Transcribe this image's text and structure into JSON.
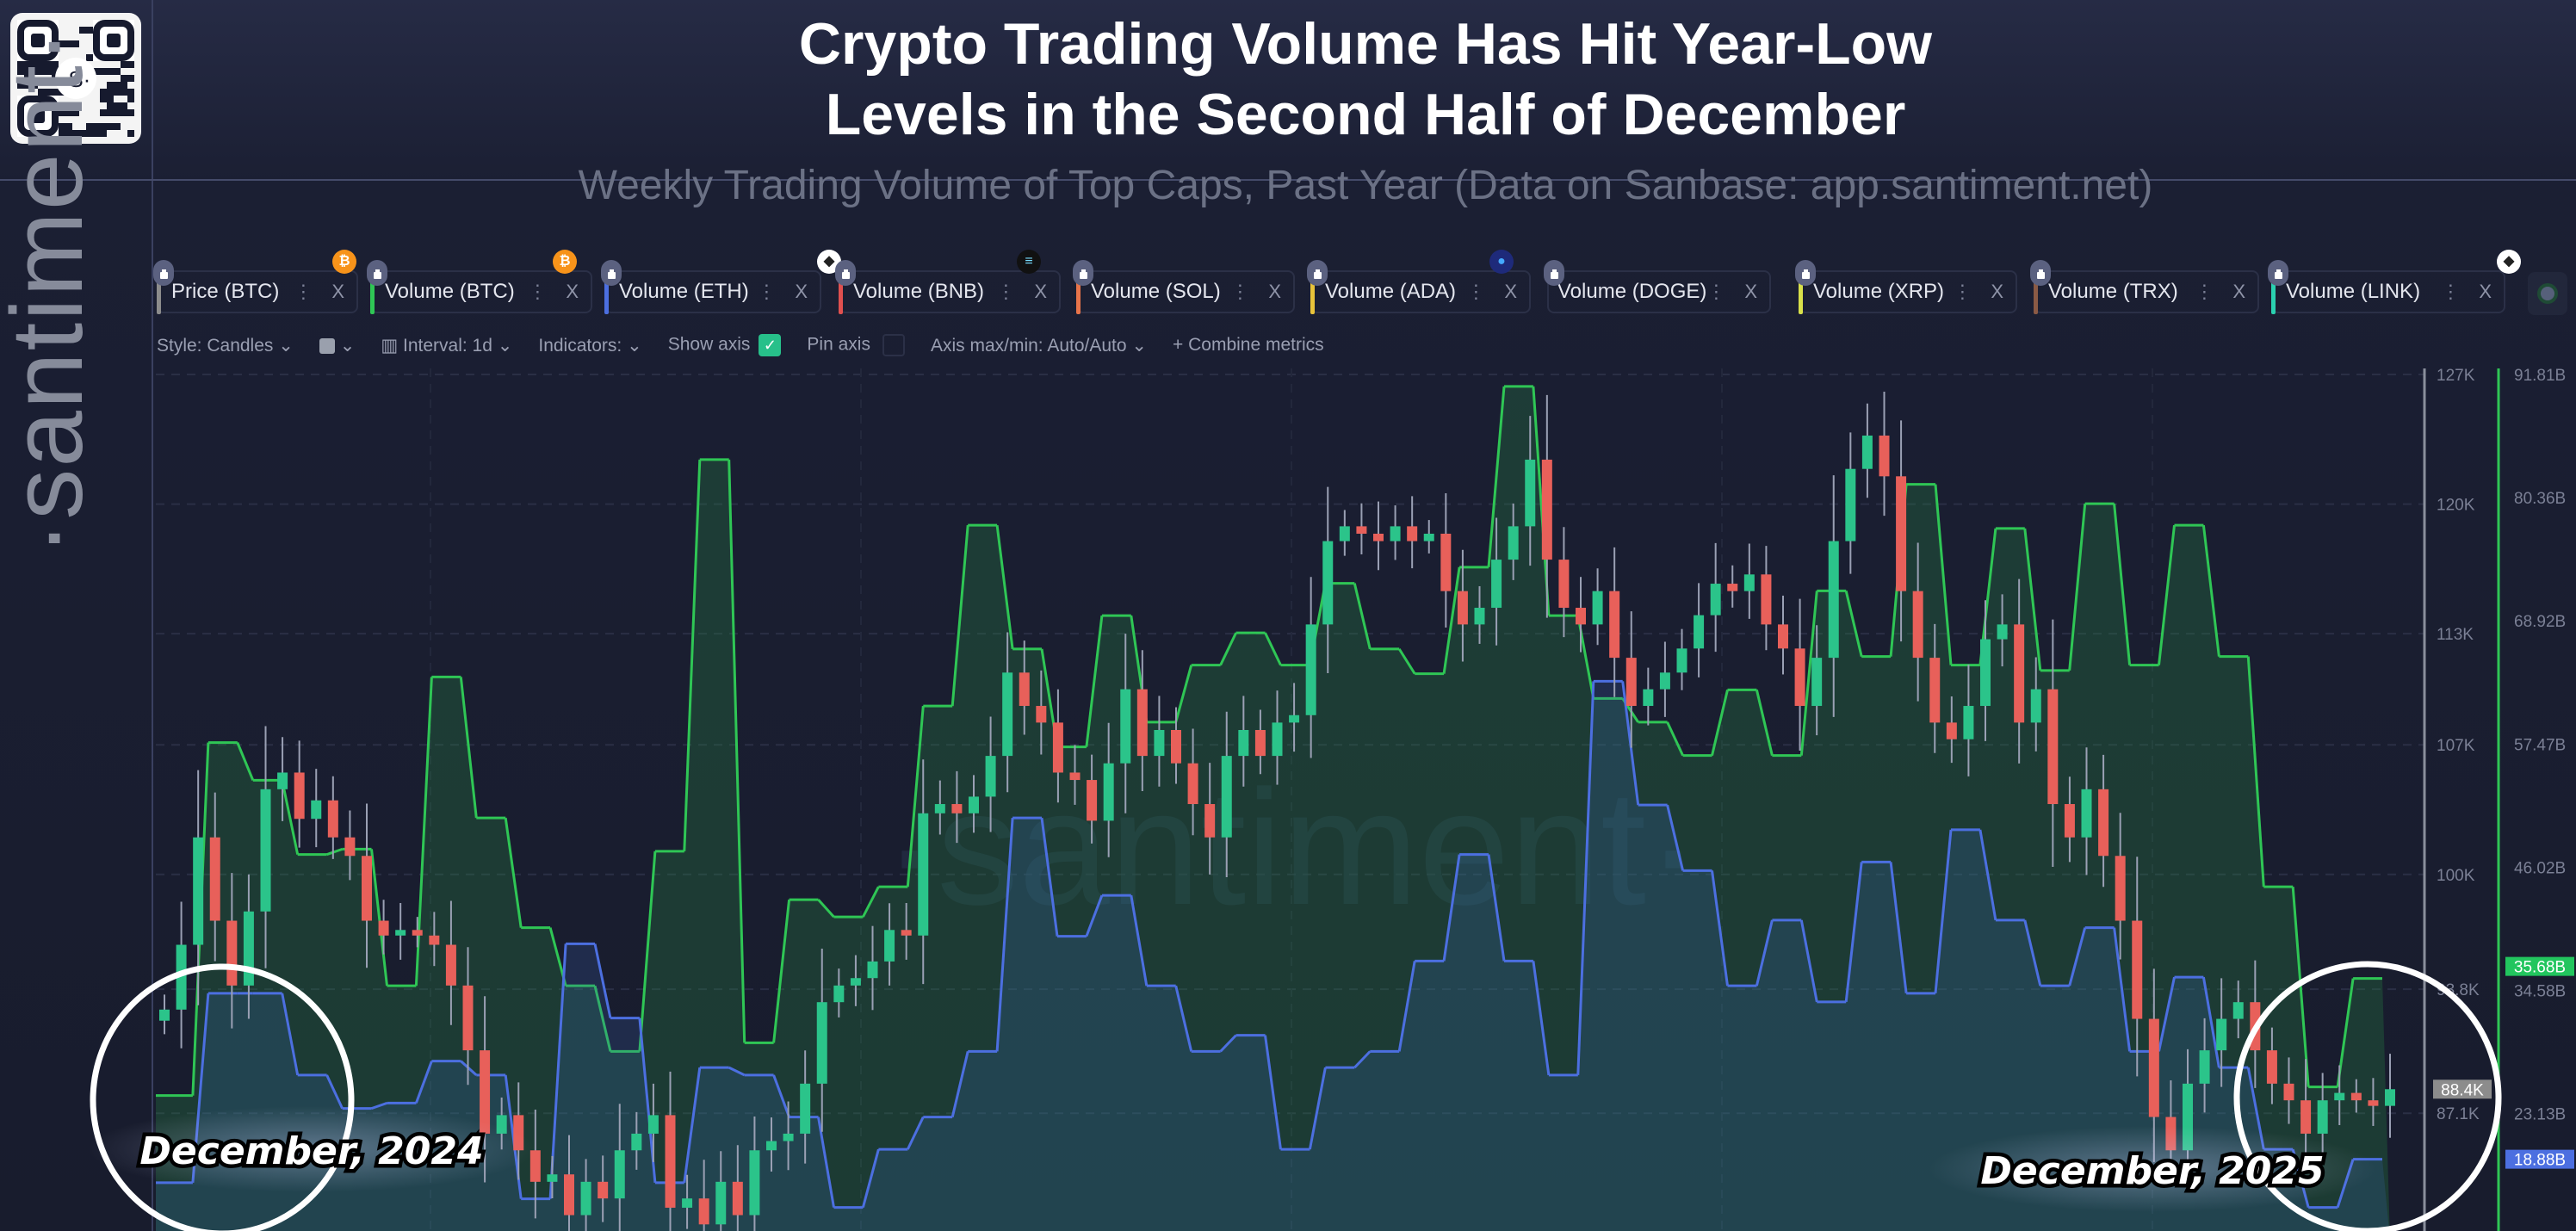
{
  "header": {
    "title_line1": "Crypto Trading Volume Has Hit Year-Low",
    "title_line2": "Levels in the Second Half of December",
    "subtitle": "Weekly Trading Volume of Top Caps, Past Year (Data on Sanbase: app.santiment.net)",
    "side_logo": "·santiment·",
    "watermark": "·santiment·"
  },
  "metrics": [
    {
      "label": "Price (BTC)",
      "color": "#8c8c8c",
      "coin": "bitcoin-icon"
    },
    {
      "label": "Volume (BTC)",
      "color": "#2fc655",
      "coin": "bitcoin-icon"
    },
    {
      "label": "Volume (ETH)",
      "color": "#4c6fe0",
      "coin": "ethereum-icon"
    },
    {
      "label": "Volume (BNB)",
      "color": "#e0504f",
      "coin": "solana-icon"
    },
    {
      "label": "Volume (SOL)",
      "color": "#e8744a"
    },
    {
      "label": "Volume (ADA)",
      "color": "#e8c33a",
      "coin": "cardano-icon"
    },
    {
      "label": "Volume (DOGE)",
      "color": "#e070e0"
    },
    {
      "label": "Volume (XRP)",
      "color": "#d8e04a"
    },
    {
      "label": "Volume (TRX)",
      "color": "#8a5a45"
    },
    {
      "label": "Volume (LINK)",
      "color": "#2ad0b0",
      "coin": "ethereum-icon"
    }
  ],
  "toolbar": {
    "style": "Style: Candles",
    "interval": "Interval: 1d",
    "indicators": "Indicators:",
    "show_axis": "Show axis",
    "show_axis_checked": true,
    "pin_axis": "Pin axis",
    "pin_axis_checked": false,
    "axis_maxmin": "Axis max/min: Auto/Auto",
    "combine": "Combine metrics"
  },
  "annotations": {
    "left": "December, 2024",
    "right": "December, 2025"
  },
  "chart_data": {
    "type": "line",
    "price_axis": {
      "ticks": [
        "127K",
        "120K",
        "113K",
        "107K",
        "100K",
        "93.8K",
        "87.1K"
      ],
      "tick_values": [
        127,
        120,
        113,
        107,
        100,
        93.8,
        87.1
      ],
      "unit": "K USD",
      "current_label": "88.4K"
    },
    "volume_axis": {
      "ticks": [
        "91.81B",
        "80.36B",
        "68.92B",
        "57.47B",
        "46.02B",
        "34.58B",
        "23.13B"
      ],
      "tick_values": [
        91.81,
        80.36,
        68.92,
        57.47,
        46.02,
        34.58,
        23.13
      ],
      "unit": "B USD",
      "btc_current_label": "35.68B",
      "eth_current_label": "18.88B"
    },
    "grid": true,
    "series": [
      {
        "name": "Price (BTC)",
        "style": "candles",
        "color_up": "#2bc48a",
        "color_down": "#e8605a",
        "closes": [
          92.7,
          96.2,
          102,
          97.5,
          94,
          98,
          104.6,
          105.5,
          103,
          104,
          102,
          101,
          97.5,
          96.7,
          97,
          96.7,
          96.2,
          94,
          90.5,
          86,
          87,
          85.1,
          83.4,
          83.8,
          81.6,
          83.4,
          82.5,
          85.1,
          86,
          87,
          82,
          82.5,
          81.1,
          83.4,
          81.6,
          85.1,
          85.6,
          86,
          88.7,
          93.1,
          94,
          94.4,
          95.3,
          97,
          96.7,
          103.3,
          103.8,
          103.3,
          104.2,
          106.4,
          110.9,
          109.1,
          108.2,
          105.5,
          105.1,
          102.9,
          106,
          110,
          106.4,
          107.8,
          106,
          103.8,
          102,
          106.4,
          107.8,
          106.4,
          108.2,
          108.6,
          113.5,
          118,
          118.8,
          118.4,
          118,
          118.8,
          118,
          118.4,
          115.3,
          113.5,
          114.4,
          117,
          118.8,
          122.4,
          117,
          114.4,
          113.5,
          115.3,
          111.7,
          109.1,
          110,
          110.9,
          112.2,
          114,
          115.7,
          115.3,
          116.2,
          113.5,
          112.2,
          109.1,
          111.7,
          118,
          121.9,
          123.7,
          121.5,
          115.3,
          111.7,
          108.2,
          107.3,
          109.1,
          112.7,
          113.5,
          108.2,
          110,
          103.8,
          102,
          104.6,
          101,
          97.5,
          92.2,
          86.9,
          85.1,
          88.7,
          90.5,
          92.2,
          93.1,
          90.5,
          88.7,
          87.8,
          86,
          87.8,
          88.2,
          87.8,
          87.5,
          88.4
        ]
      },
      {
        "name": "Volume (BTC)",
        "style": "step-area",
        "color": "#2fc655",
        "values": [
          24.8,
          57.6,
          54.1,
          47.2,
          47.7,
          35.0,
          63.7,
          50.6,
          40.4,
          35.0,
          28.9,
          47.5,
          83.9,
          29.7,
          43.0,
          41.4,
          44.2,
          61.0,
          77.8,
          66.3,
          57.2,
          69.4,
          59.5,
          64.8,
          67.8,
          64.8,
          72.4,
          66.3,
          64.0,
          73.9,
          90.7,
          69.4,
          61.7,
          59.5,
          56.4,
          62.5,
          56.4,
          71.7,
          65.6,
          81.6,
          64.8,
          77.5,
          64.3,
          79.8,
          64.8,
          77.8,
          65.6,
          44.2,
          25.6,
          35.68
        ]
      },
      {
        "name": "Volume (ETH)",
        "style": "step-area",
        "color": "#4c6fe0",
        "values": [
          16.7,
          34.3,
          34.3,
          26.7,
          23.6,
          24.1,
          28.0,
          26.7,
          15.2,
          38.9,
          32.0,
          16.7,
          27.4,
          26.7,
          22.8,
          14.4,
          19.8,
          22.8,
          28.9,
          50.6,
          39.6,
          43.4,
          35.0,
          28.9,
          30.4,
          19.8,
          27.4,
          28.9,
          37.3,
          47.2,
          37.3,
          26.7,
          63.3,
          51.8,
          45.7,
          35.0,
          41.1,
          33.5,
          46.5,
          34.3,
          49.5,
          41.1,
          35.0,
          40.4,
          28.9,
          35.8,
          27.4,
          19.8,
          14.4,
          18.88
        ]
      }
    ]
  }
}
